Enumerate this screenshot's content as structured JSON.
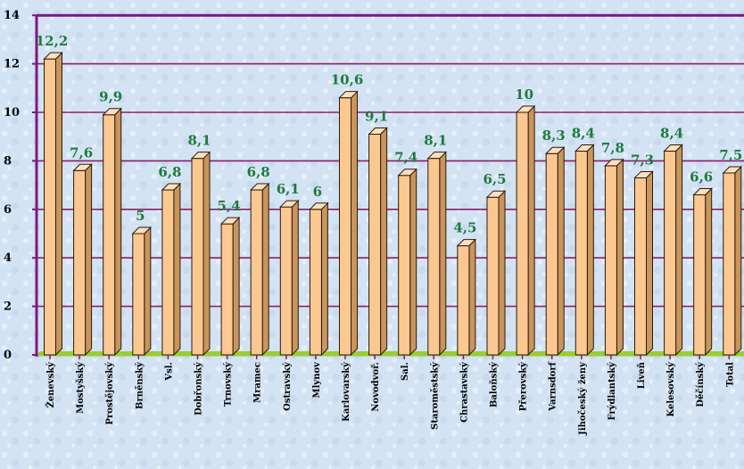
{
  "chart_data": {
    "type": "bar",
    "title": "",
    "xlabel": "",
    "ylabel": "",
    "ylim": [
      0,
      14
    ],
    "yticks": [
      0,
      2,
      4,
      6,
      8,
      10,
      12,
      14
    ],
    "grid": true,
    "legend": "none",
    "categories": [
      "Ženevský",
      "Mostyšský",
      "Prostějovský",
      "Brněnský",
      "Vsl.",
      "Dobřonský",
      "Trnovský",
      "Mramec",
      "Ostravský",
      "Mlynov",
      "Karlovarský",
      "Novodvoř.",
      "Sal.",
      "Staroměstský",
      "Chrastavský",
      "Baloňský",
      "Přerovský",
      "Varnsdorf",
      "Jihočeský ženy",
      "Frýdlantský",
      "Liveň",
      "Kelesovský",
      "Děčínský",
      "Total"
    ],
    "values": [
      12.2,
      7.6,
      9.9,
      5.0,
      6.8,
      8.1,
      5.4,
      6.8,
      6.1,
      6.0,
      10.6,
      9.1,
      7.4,
      8.1,
      4.5,
      6.5,
      10.0,
      8.3,
      8.4,
      7.8,
      7.3,
      8.4,
      6.6,
      7.5
    ],
    "data_labels": [
      "12,2",
      "7,6",
      "9,9",
      "5",
      "6,8",
      "8,1",
      "5,4",
      "6,8",
      "6,1",
      "6",
      "10,6",
      "9,1",
      "7,4",
      "8,1",
      "4,5",
      "6,5",
      "10",
      "8,3",
      "8,4",
      "7,8",
      "7,3",
      "8,4",
      "6,6",
      "7,5"
    ],
    "colors": {
      "bar_front": "#fcc891",
      "bar_side": "#c8955d",
      "bar_top": "#fde0bf",
      "bar_edge": "#2a1a0a",
      "gridline": "#8b1f6a",
      "axis": "#7a1a80",
      "floor": "#9acd32",
      "data_label": "#1e7a3c"
    }
  }
}
